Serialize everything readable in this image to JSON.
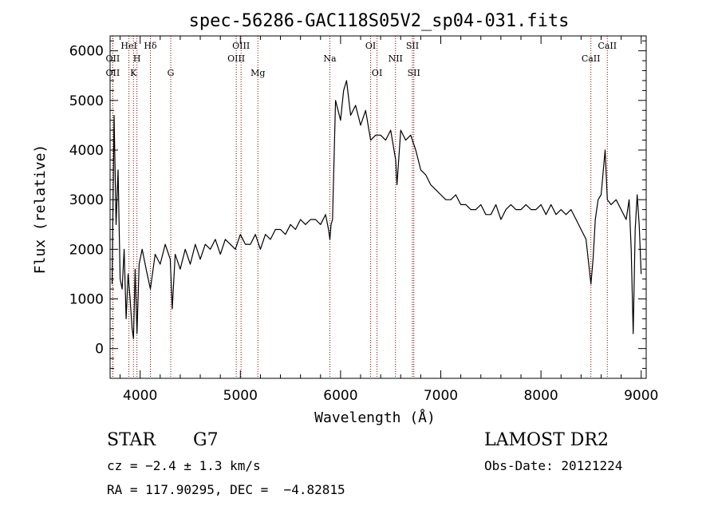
{
  "chart_data": {
    "type": "line",
    "title": "spec-56286-GAC118S05V2_sp04-031.fits",
    "xlabel": "Wavelength (Å)",
    "ylabel": "Flux (relative)",
    "xlim": [
      3700,
      9050
    ],
    "ylim": [
      -600,
      6300
    ],
    "xticks": [
      4000,
      5000,
      6000,
      7000,
      8000,
      9000
    ],
    "yticks": [
      0,
      1000,
      2000,
      3000,
      4000,
      5000,
      6000
    ],
    "series": [
      {
        "x": [
          3720,
          3740,
          3760,
          3780,
          3800,
          3820,
          3840,
          3860,
          3880,
          3900,
          3920,
          3933,
          3950,
          3968,
          3990,
          4020,
          4060,
          4102,
          4150,
          4200,
          4250,
          4300,
          4320,
          4350,
          4400,
          4450,
          4500,
          4550,
          4600,
          4650,
          4700,
          4750,
          4800,
          4850,
          4900,
          4950,
          5000,
          5050,
          5100,
          5150,
          5200,
          5250,
          5300,
          5350,
          5400,
          5450,
          5500,
          5550,
          5600,
          5650,
          5700,
          5750,
          5800,
          5850,
          5880,
          5893,
          5905,
          5920,
          5950,
          6000,
          6030,
          6060,
          6100,
          6150,
          6200,
          6250,
          6300,
          6350,
          6400,
          6450,
          6500,
          6550,
          6563,
          6600,
          6650,
          6700,
          6750,
          6800,
          6850,
          6900,
          6950,
          7000,
          7050,
          7100,
          7150,
          7200,
          7250,
          7300,
          7350,
          7400,
          7450,
          7500,
          7550,
          7600,
          7650,
          7700,
          7750,
          7800,
          7850,
          7900,
          7950,
          8000,
          8050,
          8100,
          8150,
          8200,
          8250,
          8300,
          8350,
          8400,
          8450,
          8498,
          8520,
          8542,
          8570,
          8600,
          8640,
          8662,
          8700,
          8750,
          8800,
          8850,
          8880,
          8900,
          8920,
          8940,
          8960,
          8980,
          9000
        ],
        "y": [
          1300,
          4700,
          2500,
          3600,
          1400,
          1200,
          2000,
          600,
          1500,
          1000,
          400,
          200,
          1600,
          300,
          1700,
          2000,
          1600,
          1200,
          1900,
          1700,
          2100,
          1800,
          800,
          1900,
          1600,
          2000,
          1700,
          2100,
          1800,
          2100,
          2000,
          2200,
          1900,
          2200,
          2100,
          2000,
          2300,
          2100,
          2100,
          2300,
          2000,
          2300,
          2200,
          2400,
          2400,
          2300,
          2500,
          2400,
          2600,
          2500,
          2600,
          2600,
          2500,
          2700,
          2400,
          2200,
          2500,
          2600,
          5000,
          4600,
          5200,
          5400,
          4700,
          4900,
          4500,
          4800,
          4200,
          4300,
          4300,
          4200,
          4400,
          3800,
          3300,
          4400,
          4200,
          4300,
          4000,
          3600,
          3500,
          3300,
          3200,
          3100,
          3000,
          3000,
          3100,
          2900,
          2900,
          2800,
          2800,
          2900,
          2700,
          2700,
          2900,
          2600,
          2800,
          2900,
          2800,
          2800,
          2900,
          2800,
          2800,
          2900,
          2700,
          2900,
          2700,
          2800,
          2700,
          2800,
          2600,
          2400,
          2200,
          1300,
          1800,
          2600,
          3000,
          3100,
          4000,
          3000,
          2900,
          3000,
          2800,
          2600,
          3000,
          2000,
          300,
          2400,
          3100,
          2500,
          1500
        ]
      }
    ],
    "line_markers": [
      {
        "label": "OII",
        "x": 3727,
        "row": 2
      },
      {
        "label": "OII",
        "x": 3727,
        "row": 3
      },
      {
        "label": "HeI",
        "x": 3888,
        "row": 1
      },
      {
        "label": "H",
        "x": 3968,
        "row": 2
      },
      {
        "label": "K",
        "x": 3933,
        "row": 3
      },
      {
        "label": "Hδ",
        "x": 4102,
        "row": 1
      },
      {
        "label": "G",
        "x": 4305,
        "row": 3
      },
      {
        "label": "OIII",
        "x": 5007,
        "row": 1
      },
      {
        "label": "OIII",
        "x": 4959,
        "row": 2
      },
      {
        "label": "Mg",
        "x": 5175,
        "row": 3
      },
      {
        "label": "Na",
        "x": 5893,
        "row": 2
      },
      {
        "label": "OI",
        "x": 6300,
        "row": 1
      },
      {
        "label": "OI",
        "x": 6364,
        "row": 3
      },
      {
        "label": "NII",
        "x": 6548,
        "row": 2
      },
      {
        "label": "SII",
        "x": 6717,
        "row": 1
      },
      {
        "label": "SII",
        "x": 6731,
        "row": 3
      },
      {
        "label": "CaII",
        "x": 8498,
        "row": 2
      },
      {
        "label": "CaII",
        "x": 8662,
        "row": 1
      }
    ],
    "colors": {
      "line": "#000000",
      "marker": "#8b0000"
    }
  },
  "footer": {
    "object_class": "STAR",
    "subclass": "G7",
    "survey": "LAMOST DR2",
    "cz": "cz = −2.4 ± 1.3 km/s",
    "obs_date": "Obs-Date: 20121224",
    "coords": "RA = 117.90295, DEC =  −4.82815"
  }
}
